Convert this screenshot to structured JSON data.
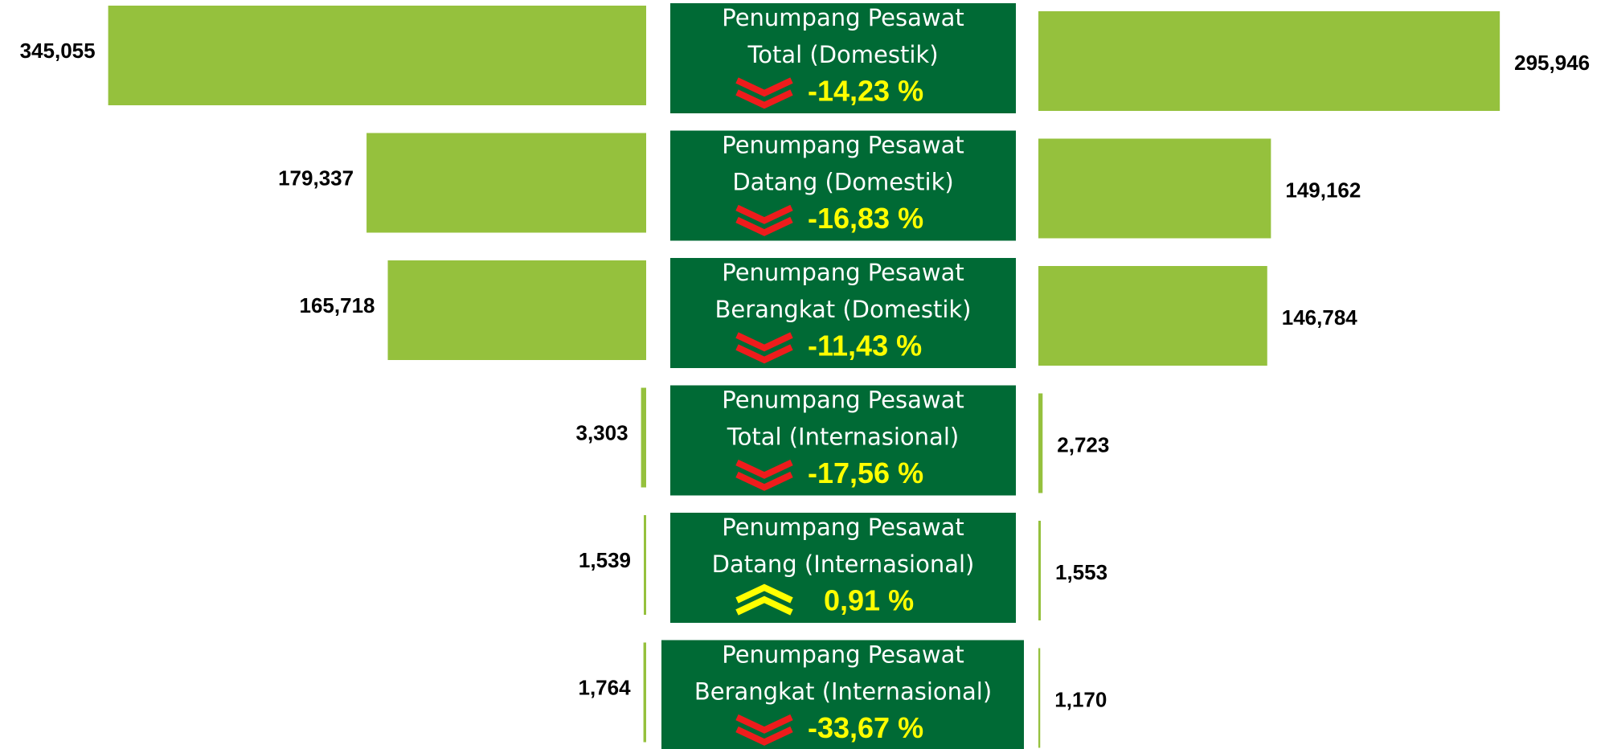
{
  "chart_data": {
    "type": "butterfly",
    "categories": [
      [
        "Penumpang Pesawat",
        "Total (Domestik)"
      ],
      [
        "Penumpang Pesawat",
        "Datang (Domestik)"
      ],
      [
        "Penumpang Pesawat",
        "Berangkat (Domestik)"
      ],
      [
        "Penumpang Pesawat",
        "Total (Internasional)"
      ],
      [
        "Penumpang Pesawat",
        "Datang (Internasional)"
      ],
      [
        "Penumpang Pesawat",
        "Berangkat (Internasional)"
      ]
    ],
    "series": [
      {
        "color": "#95c13d",
        "values": [
          345055,
          179337,
          165718,
          3303,
          1539,
          1764
        ],
        "value_labels": [
          "345,055",
          "179,337",
          "165,718",
          "3,303",
          "1,539",
          "1,764"
        ]
      },
      {
        "color": "#95c13d",
        "values": [
          295946,
          149162,
          146784,
          2723,
          1553,
          1170
        ],
        "value_labels": [
          "295,946",
          "149,162",
          "146,784",
          "2,723",
          "1,553",
          "1,170"
        ]
      }
    ],
    "changes": {
      "values": [
        -14.23,
        -16.83,
        -11.43,
        -17.56,
        0.91,
        -33.67
      ],
      "value_labels": [
        "-14,23 %",
        "-16,83 %",
        "-11,43 %",
        "-17,56 %",
        "0,91 %",
        "-33,67 %"
      ],
      "down_color": "#ee1c1c",
      "up_color": "#ffff00",
      "text_color": "#ffff00"
    },
    "box_color": "#006a35"
  }
}
